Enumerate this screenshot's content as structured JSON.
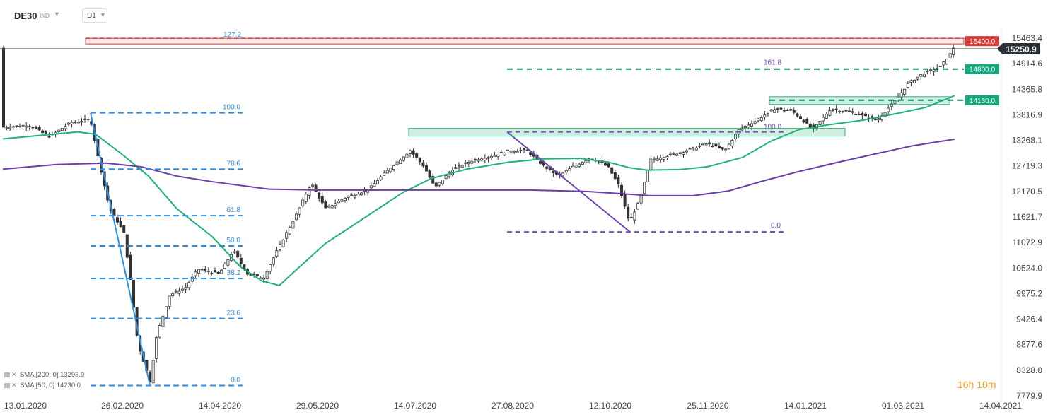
{
  "toolbar": {
    "symbol": "DE30",
    "symbol_type": "IND",
    "timeframe": "D1"
  },
  "timer": {
    "hours": "16",
    "h": "h",
    "minutes": "10",
    "m": "m"
  },
  "legend": [
    {
      "text": "SMA [200, 0]  13293.9"
    },
    {
      "text": "SMA [50, 0]  14230.0"
    }
  ],
  "chart_data": {
    "type": "candlestick",
    "symbol": "DE30",
    "timeframe": "D1",
    "y_axis_ticks": [
      "15463.4",
      "14914.6",
      "14365.8",
      "13816.9",
      "13268.1",
      "12719.3",
      "12170.5",
      "11621.7",
      "11072.9",
      "10524.0",
      "9975.2",
      "9426.4",
      "8877.6",
      "8328.8",
      "7779.9"
    ],
    "x_axis_ticks": [
      "13.01.2020",
      "26.02.2020",
      "14.04.2020",
      "29.05.2020",
      "14.07.2020",
      "27.08.2020",
      "12.10.2020",
      "25.11.2020",
      "14.01.2021",
      "01.03.2021",
      "14.04.2021"
    ],
    "last_price": "15250.9",
    "price_labels": [
      {
        "text": "15400.0",
        "color": "#d93a3a"
      },
      {
        "text": "14800.0",
        "color": "#12a97f"
      },
      {
        "text": "14130.0",
        "color": "#12a97f"
      }
    ],
    "fib_levels_1": [
      {
        "label": "127.2",
        "price": 15400
      },
      {
        "label": "100.0",
        "price": 13860
      },
      {
        "label": "78.6",
        "price": 12650
      },
      {
        "label": "61.8",
        "price": 11650
      },
      {
        "label": "50.0",
        "price": 11000
      },
      {
        "label": "38.2",
        "price": 10300
      },
      {
        "label": "23.6",
        "price": 9440
      },
      {
        "label": "0.0",
        "price": 8000
      }
    ],
    "fib_levels_2": [
      {
        "label": "161.8",
        "price": 14800
      },
      {
        "label": "100.0",
        "price": 13450
      },
      {
        "label": "0.0",
        "price": 11300
      }
    ],
    "series": [
      {
        "name": "SMA [200, 0]",
        "color": "#6a3fa8",
        "last": "13293.9"
      },
      {
        "name": "SMA [50, 0]",
        "color": "#1fb377",
        "last": "14230.0"
      }
    ],
    "colors": {
      "bull": "#ffffff",
      "bear": "#333333",
      "fib_blue": "#2d8ee6",
      "fib_purple": "#7048b8",
      "zone": "#2fb37a",
      "resistance": "#d93a3a"
    }
  }
}
